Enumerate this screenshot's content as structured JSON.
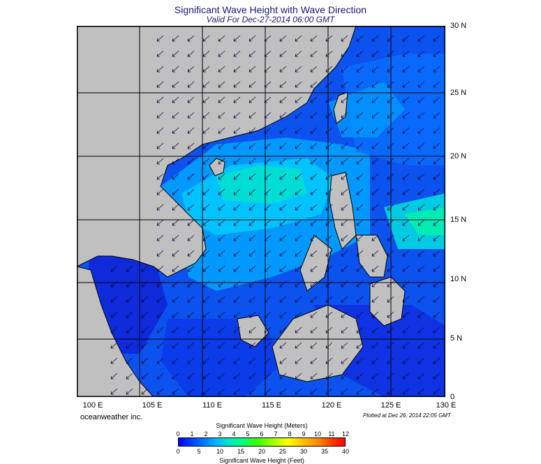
{
  "title": "Significant Wave Height with Wave Direction",
  "subtitle": "Valid For Dec-27-2014 06:00 GMT",
  "lat_labels": [
    "30 N",
    "25 N",
    "20 N",
    "15 N",
    "10 N",
    "5 N",
    "0"
  ],
  "lon_labels": [
    "100 E",
    "105 E",
    "110 E",
    "115 E",
    "120 E",
    "125 E",
    "130 E"
  ],
  "credit": "oceanweather inc.",
  "plotted": "Plotted at Dec 26, 2014 22:05 GMT",
  "colorbar": {
    "title_top": "Significant Wave Height (Meters)",
    "title_bottom": "Significant Wave Height (Feet)",
    "meters_ticks": [
      "0",
      "1",
      "2",
      "3",
      "4",
      "5",
      "6",
      "7",
      "8",
      "9",
      "10",
      "11",
      "12"
    ],
    "feet_ticks": [
      "0",
      "5",
      "10",
      "15",
      "20",
      "25",
      "30",
      "35",
      "40"
    ]
  },
  "colors": {
    "land": "#c0c0c0",
    "deep_low": "#0000ff",
    "low": "#0050ff",
    "mid": "#00b4ff",
    "high": "#00e0c0"
  },
  "arrow_direction": "northeast monsoon, arrows pointing southwest"
}
